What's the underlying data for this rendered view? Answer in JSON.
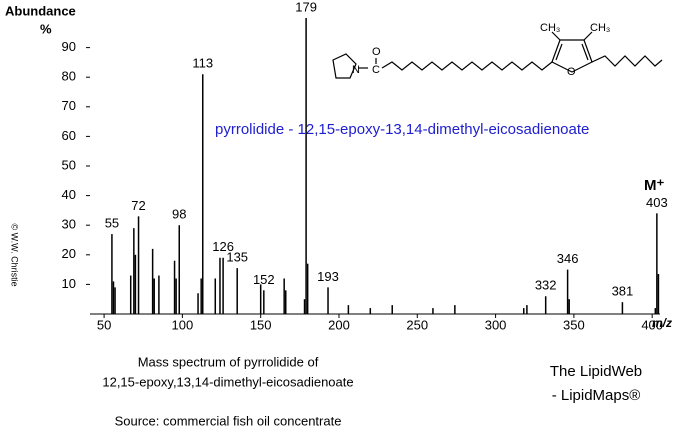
{
  "chart_data": {
    "type": "spectrum",
    "title": "pyrrolidide -   12,15-epoxy-13,14-dimethyl-eicosadienoate",
    "y_label": "Abundance",
    "y_unit": "%",
    "x_label": "m/z",
    "molecular_ion": "M⁺",
    "caption": [
      "Mass spectrum of pyrrolidide of",
      "12,15-epoxy,13,14-dimethyl-eicosadienoate"
    ],
    "source": "Source:  commercial fish oil concentrate",
    "credit": [
      "The LipidWeb",
      "- LipidMaps®"
    ],
    "copyright": "© W.W. Christie",
    "structure_labels": [
      "CH₃",
      "CH₃",
      "O",
      "N",
      "C",
      "O"
    ],
    "color": "#000000",
    "xlim": [
      41,
      405
    ],
    "xticks": [
      50,
      100,
      150,
      200,
      250,
      300,
      350,
      400
    ],
    "ylim": [
      0,
      100
    ],
    "yticks": [
      10,
      20,
      30,
      40,
      50,
      60,
      70,
      80,
      90
    ],
    "x": [
      55,
      56,
      57,
      67,
      69,
      70,
      72,
      81,
      82,
      85,
      95,
      96,
      98,
      110,
      112,
      113,
      121,
      124,
      126,
      135,
      150,
      152,
      165,
      166,
      178,
      179,
      180,
      193,
      206,
      220,
      234,
      260,
      274,
      318,
      320,
      332,
      346,
      347,
      381,
      402,
      403,
      404
    ],
    "values": [
      27,
      11,
      9,
      13,
      29,
      20,
      33,
      22,
      12,
      13,
      18,
      12,
      30,
      7,
      12,
      81,
      12,
      19,
      19,
      15.5,
      10,
      8,
      12,
      8,
      5,
      100,
      17,
      9,
      3,
      2,
      3,
      2,
      3,
      2,
      3,
      6,
      15,
      5,
      4,
      2,
      34,
      13.5
    ],
    "peak_labels": [
      "55",
      null,
      null,
      null,
      null,
      null,
      "72",
      null,
      null,
      null,
      null,
      null,
      "98",
      null,
      null,
      "113",
      null,
      null,
      "126",
      "135",
      null,
      "152",
      null,
      null,
      null,
      "179",
      null,
      "193",
      null,
      null,
      null,
      null,
      null,
      null,
      null,
      "332",
      "346",
      null,
      "381",
      null,
      "403",
      null
    ]
  }
}
